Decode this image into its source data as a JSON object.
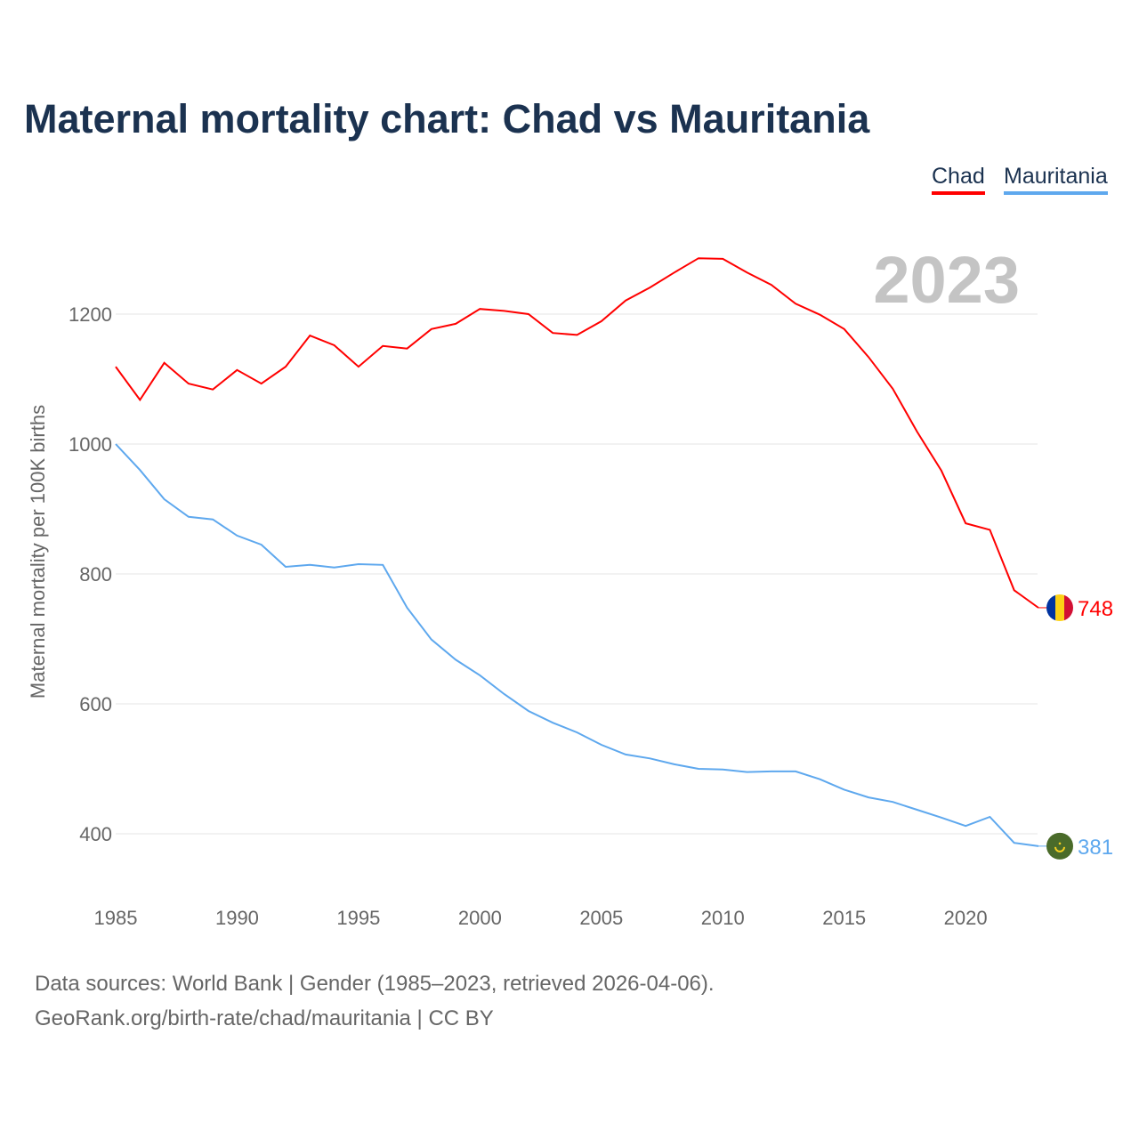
{
  "chart_data": {
    "type": "line",
    "title": "Maternal mortality chart: Chad vs Mauritania",
    "ylabel": "Maternal mortality per 100K births",
    "xlabel": "",
    "year_label": "2023",
    "ylim": [
      320,
      1300
    ],
    "xlim": [
      1985,
      2023
    ],
    "yticks": [
      400,
      600,
      800,
      1000,
      1200
    ],
    "xticks": [
      1985,
      1990,
      1995,
      2000,
      2005,
      2010,
      2015,
      2020
    ],
    "grid": true,
    "legend_position": "top-right",
    "x": [
      1985,
      1986,
      1987,
      1988,
      1989,
      1990,
      1991,
      1992,
      1993,
      1994,
      1995,
      1996,
      1997,
      1998,
      1999,
      2000,
      2001,
      2002,
      2003,
      2004,
      2005,
      2006,
      2007,
      2008,
      2009,
      2010,
      2011,
      2012,
      2013,
      2014,
      2015,
      2016,
      2017,
      2018,
      2019,
      2020,
      2021,
      2022,
      2023
    ],
    "series": [
      {
        "name": "Chad",
        "color": "#ff0000",
        "end_label": "748",
        "values": [
          1119,
          1068,
          1125,
          1093,
          1084,
          1114,
          1093,
          1119,
          1167,
          1152,
          1119,
          1151,
          1147,
          1177,
          1185,
          1208,
          1205,
          1200,
          1171,
          1168,
          1189,
          1221,
          1241,
          1264,
          1286,
          1285,
          1264,
          1245,
          1216,
          1199,
          1177,
          1134,
          1085,
          1019,
          959,
          878,
          868,
          775,
          748
        ]
      },
      {
        "name": "Mauritania",
        "color": "#5ea8ee",
        "end_label": "381",
        "values": [
          1000,
          960,
          915,
          888,
          884,
          859,
          845,
          811,
          814,
          810,
          815,
          814,
          748,
          699,
          668,
          644,
          615,
          589,
          571,
          556,
          537,
          522,
          516,
          507,
          500,
          499,
          495,
          496,
          496,
          484,
          468,
          456,
          449,
          437,
          425,
          412,
          426,
          386,
          381
        ]
      }
    ]
  },
  "footer": {
    "line1": "Data sources: World Bank | Gender (1985–2023, retrieved 2026-04-06).",
    "line2": "GeoRank.org/birth-rate/chad/mauritania | CC BY"
  }
}
